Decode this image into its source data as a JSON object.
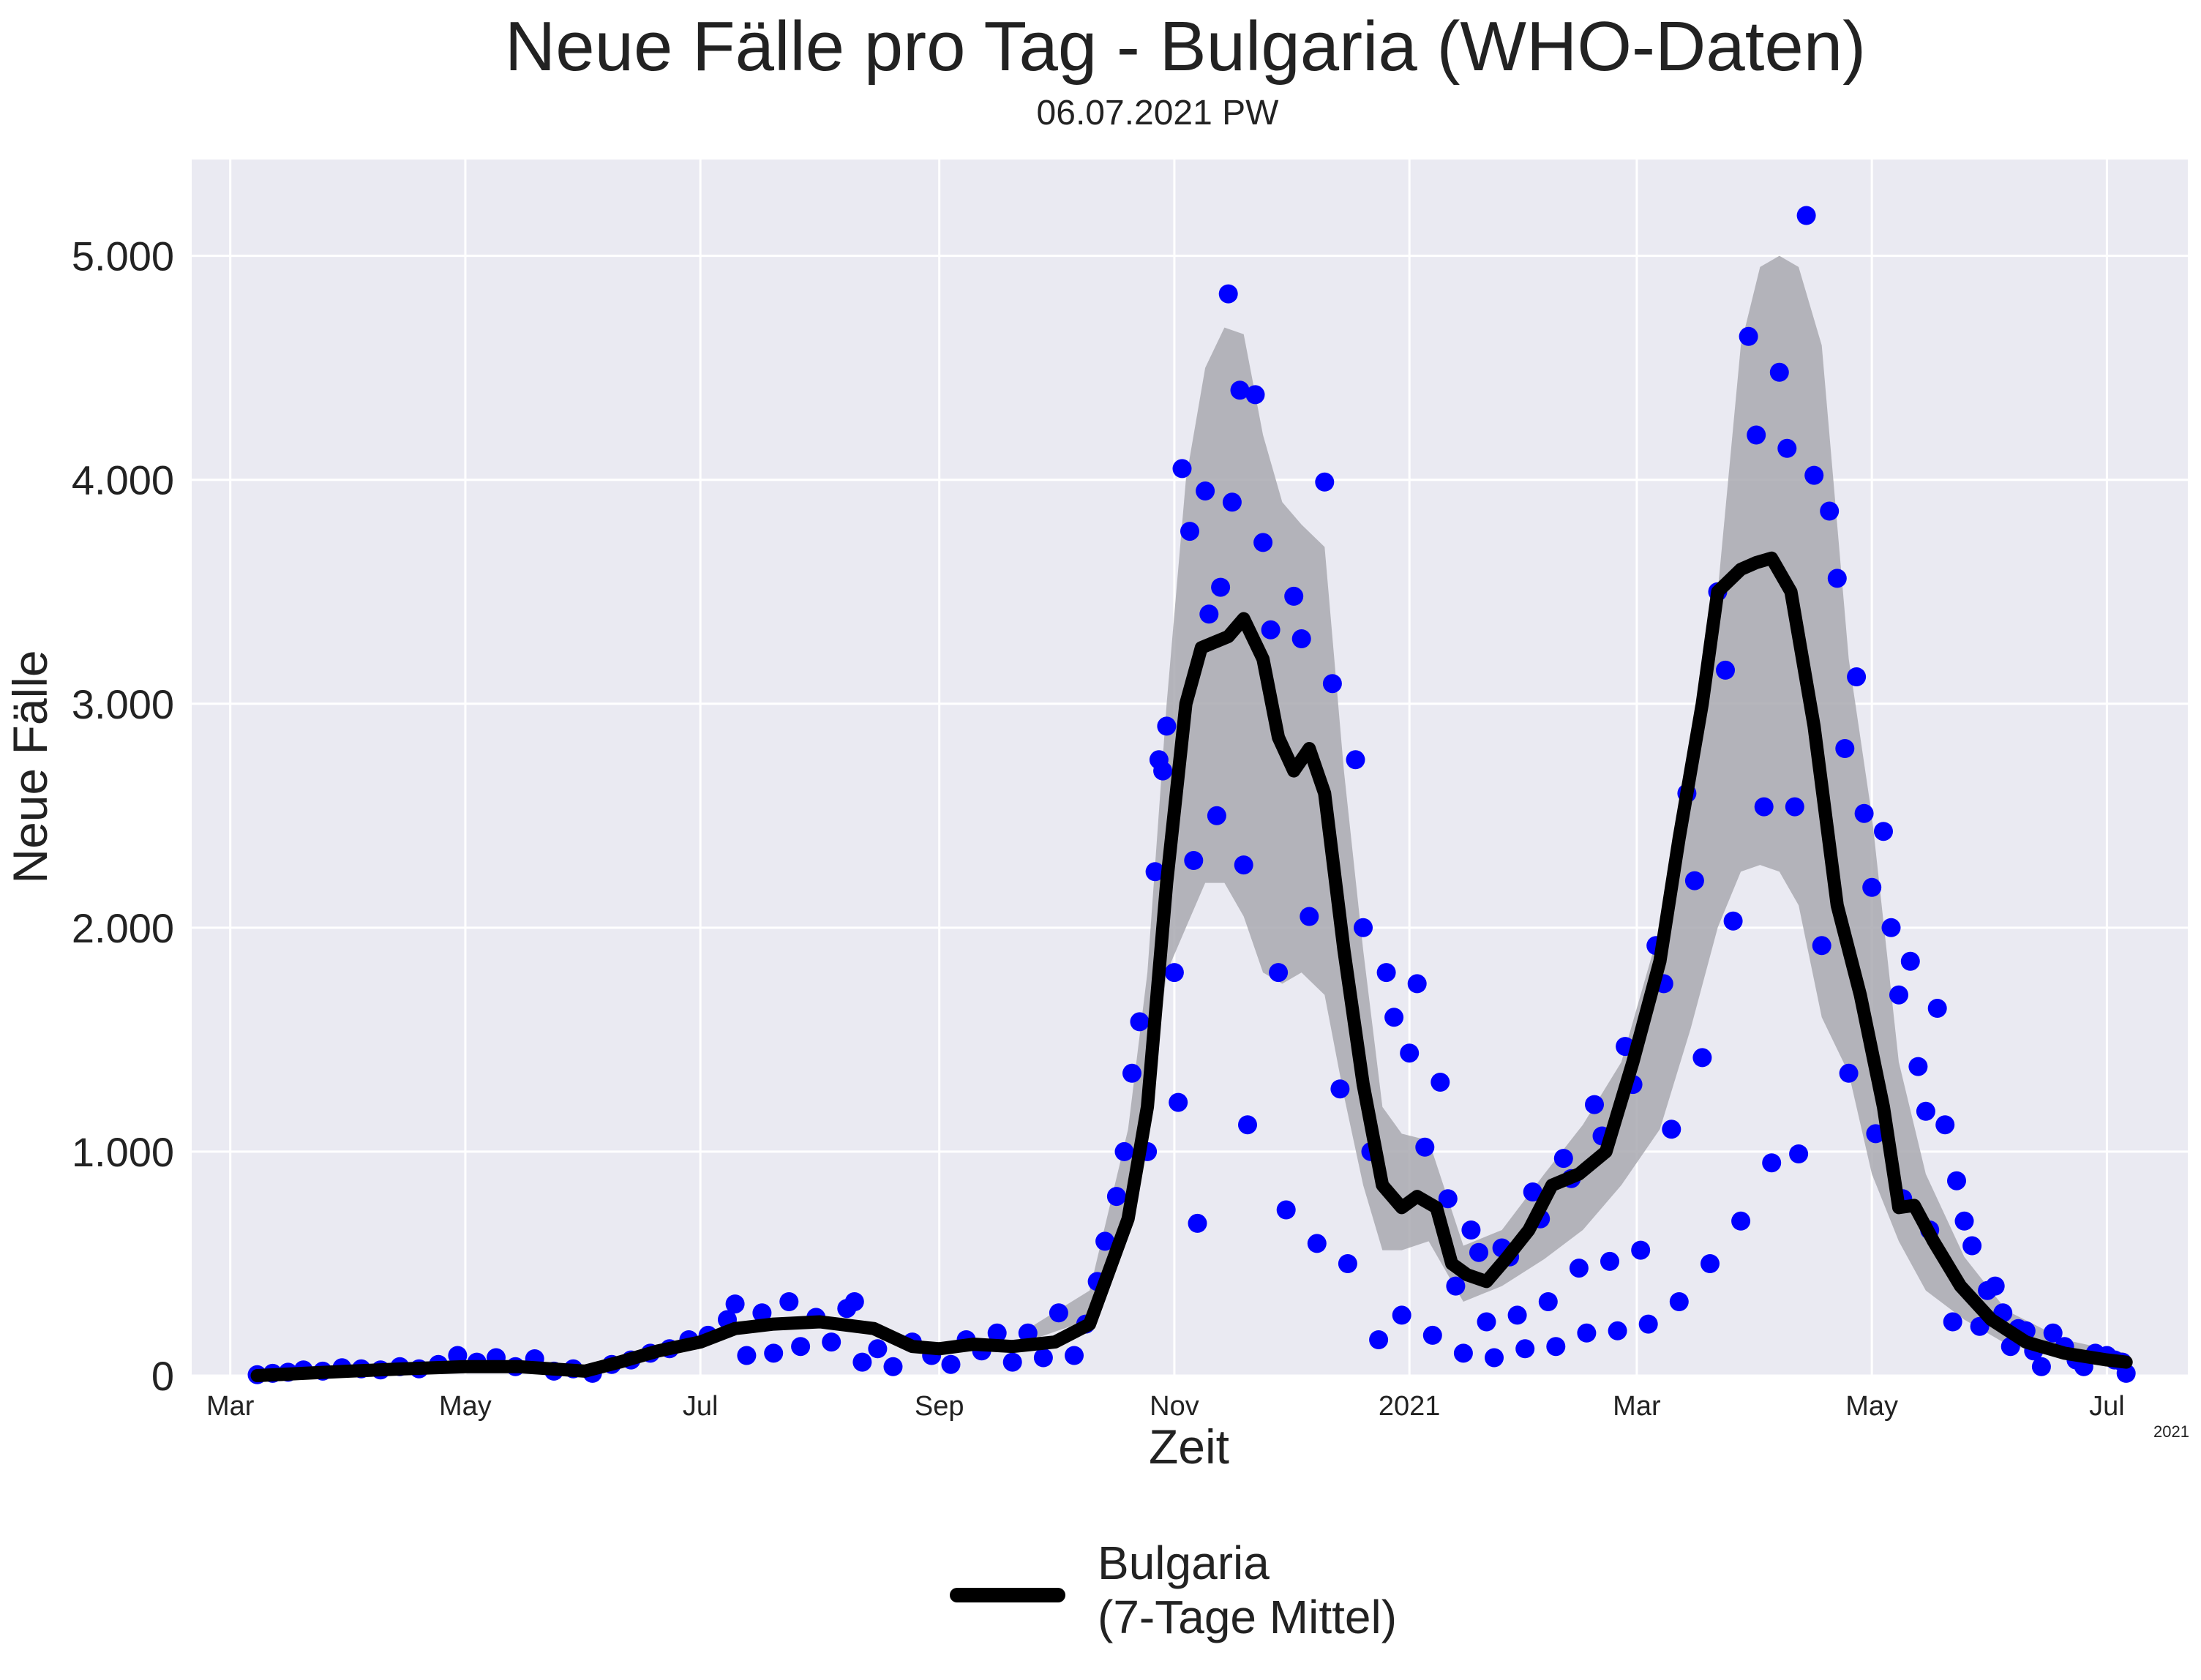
{
  "chart_data": {
    "type": "line",
    "title": "Neue Fälle pro Tag - Bulgaria (WHO-Daten)",
    "subtitle": "06.07.2021 PW",
    "xlabel": "Zeit",
    "ylabel": "Neue Fälle",
    "x_offset_label": "2021",
    "x_range": [
      "2020-02-20",
      "2021-07-22"
    ],
    "ylim": [
      0,
      5430
    ],
    "yticks": [
      {
        "value": 0,
        "label": "0"
      },
      {
        "value": 1000,
        "label": "1.000"
      },
      {
        "value": 2000,
        "label": "2.000"
      },
      {
        "value": 3000,
        "label": "3.000"
      },
      {
        "value": 4000,
        "label": "4.000"
      },
      {
        "value": 5000,
        "label": "5.000"
      }
    ],
    "xticks": [
      {
        "date": "2020-03-01",
        "label": "Mar"
      },
      {
        "date": "2020-05-01",
        "label": "May"
      },
      {
        "date": "2020-07-01",
        "label": "Jul"
      },
      {
        "date": "2020-09-01",
        "label": "Sep"
      },
      {
        "date": "2020-11-01",
        "label": "Nov"
      },
      {
        "date": "2021-01-01",
        "label": "2021"
      },
      {
        "date": "2021-03-01",
        "label": "Mar"
      },
      {
        "date": "2021-05-01",
        "label": "May"
      },
      {
        "date": "2021-07-01",
        "label": "Jul"
      }
    ],
    "grid": true,
    "legend": {
      "position": "bottom-center",
      "label": "Bulgaria\n(7-Tage Mittel)"
    },
    "colors": {
      "points": "#0000ff",
      "line": "#000000",
      "band": "#a9a9b0",
      "background": "#eaeaf2",
      "grid": "#ffffff"
    },
    "series": [
      {
        "type": "line",
        "x": [
          "2020-03-08",
          "2020-03-20",
          "2020-04-01",
          "2020-04-15",
          "2020-05-01",
          "2020-05-15",
          "2020-06-01",
          "2020-06-10",
          "2020-06-20",
          "2020-07-01",
          "2020-07-10",
          "2020-07-20",
          "2020-08-01",
          "2020-08-15",
          "2020-08-25",
          "2020-09-01",
          "2020-09-10",
          "2020-09-20",
          "2020-10-01",
          "2020-10-10",
          "2020-10-20",
          "2020-10-25",
          "2020-10-30",
          "2020-11-04",
          "2020-11-08",
          "2020-11-15",
          "2020-11-19",
          "2020-11-24",
          "2020-11-28",
          "2020-12-02",
          "2020-12-06",
          "2020-12-10",
          "2020-12-15",
          "2020-12-20",
          "2020-12-25",
          "2020-12-30",
          "2021-01-03",
          "2021-01-08",
          "2021-01-12",
          "2021-01-16",
          "2021-01-21",
          "2021-01-26",
          "2021-02-01",
          "2021-02-07",
          "2021-02-14",
          "2021-02-21",
          "2021-02-28",
          "2021-03-07",
          "2021-03-12",
          "2021-03-18",
          "2021-03-22",
          "2021-03-28",
          "2021-04-01",
          "2021-04-05",
          "2021-04-10",
          "2021-04-16",
          "2021-04-22",
          "2021-04-28",
          "2021-05-04",
          "2021-05-08",
          "2021-05-12",
          "2021-05-17",
          "2021-05-24",
          "2021-06-01",
          "2021-06-10",
          "2021-06-20",
          "2021-07-01",
          "2021-07-06"
        ],
        "y": [
          0,
          10,
          20,
          30,
          40,
          40,
          20,
          60,
          110,
          150,
          210,
          230,
          240,
          210,
          130,
          120,
          140,
          130,
          150,
          230,
          700,
          1200,
          2200,
          3000,
          3250,
          3300,
          3380,
          3200,
          2850,
          2700,
          2800,
          2600,
          1900,
          1300,
          850,
          750,
          800,
          750,
          500,
          450,
          420,
          520,
          650,
          850,
          900,
          1000,
          1400,
          1850,
          2400,
          3000,
          3500,
          3600,
          3630,
          3650,
          3500,
          2900,
          2100,
          1700,
          1200,
          750,
          760,
          600,
          400,
          250,
          150,
          100,
          70,
          60
        ]
      },
      {
        "type": "band",
        "x": [
          "2020-09-25",
          "2020-10-10",
          "2020-10-20",
          "2020-10-25",
          "2020-10-30",
          "2020-11-04",
          "2020-11-09",
          "2020-11-14",
          "2020-11-19",
          "2020-11-24",
          "2020-11-29",
          "2020-12-04",
          "2020-12-10",
          "2020-12-15",
          "2020-12-20",
          "2020-12-25",
          "2020-12-30",
          "2021-01-06",
          "2021-01-15",
          "2021-01-25",
          "2021-02-05",
          "2021-02-15",
          "2021-02-25",
          "2021-03-07",
          "2021-03-15",
          "2021-03-22",
          "2021-03-28",
          "2021-04-02",
          "2021-04-07",
          "2021-04-12",
          "2021-04-18",
          "2021-04-25",
          "2021-05-01",
          "2021-05-08",
          "2021-05-15",
          "2021-05-25",
          "2021-06-05",
          "2021-06-20",
          "2021-07-06"
        ],
        "upper": [
          220,
          380,
          1100,
          1800,
          3000,
          4000,
          4500,
          4680,
          4650,
          4200,
          3900,
          3800,
          3700,
          2700,
          1900,
          1200,
          1080,
          1050,
          580,
          650,
          900,
          1120,
          1400,
          2000,
          2700,
          3500,
          4600,
          4950,
          5000,
          4950,
          4600,
          3200,
          2500,
          1400,
          900,
          530,
          290,
          160,
          100
        ],
        "lower": [
          160,
          250,
          650,
          1100,
          1800,
          2000,
          2200,
          2200,
          2050,
          1800,
          1750,
          1800,
          1700,
          1250,
          850,
          560,
          560,
          600,
          330,
          400,
          520,
          650,
          850,
          1100,
          1550,
          2000,
          2250,
          2280,
          2250,
          2100,
          1600,
          1350,
          900,
          600,
          380,
          250,
          140,
          80,
          40
        ]
      },
      {
        "type": "scatter",
        "points": [
          [
            "2020-03-08",
            4
          ],
          [
            "2020-03-12",
            10
          ],
          [
            "2020-03-16",
            15
          ],
          [
            "2020-03-20",
            25
          ],
          [
            "2020-03-25",
            20
          ],
          [
            "2020-03-30",
            35
          ],
          [
            "2020-04-04",
            30
          ],
          [
            "2020-04-09",
            25
          ],
          [
            "2020-04-14",
            40
          ],
          [
            "2020-04-19",
            30
          ],
          [
            "2020-04-24",
            50
          ],
          [
            "2020-04-29",
            90
          ],
          [
            "2020-05-04",
            60
          ],
          [
            "2020-05-09",
            80
          ],
          [
            "2020-05-14",
            40
          ],
          [
            "2020-05-19",
            75
          ],
          [
            "2020-05-24",
            20
          ],
          [
            "2020-05-29",
            30
          ],
          [
            "2020-06-03",
            10
          ],
          [
            "2020-06-08",
            50
          ],
          [
            "2020-06-13",
            70
          ],
          [
            "2020-06-18",
            100
          ],
          [
            "2020-06-23",
            120
          ],
          [
            "2020-06-28",
            160
          ],
          [
            "2020-07-03",
            180
          ],
          [
            "2020-07-08",
            250
          ],
          [
            "2020-07-10",
            320
          ],
          [
            "2020-07-13",
            90
          ],
          [
            "2020-07-17",
            280
          ],
          [
            "2020-07-20",
            100
          ],
          [
            "2020-07-24",
            330
          ],
          [
            "2020-07-27",
            130
          ],
          [
            "2020-07-31",
            260
          ],
          [
            "2020-08-04",
            150
          ],
          [
            "2020-08-08",
            300
          ],
          [
            "2020-08-10",
            330
          ],
          [
            "2020-08-12",
            60
          ],
          [
            "2020-08-16",
            120
          ],
          [
            "2020-08-20",
            40
          ],
          [
            "2020-08-25",
            150
          ],
          [
            "2020-08-30",
            90
          ],
          [
            "2020-09-04",
            50
          ],
          [
            "2020-09-08",
            160
          ],
          [
            "2020-09-12",
            110
          ],
          [
            "2020-09-16",
            190
          ],
          [
            "2020-09-20",
            60
          ],
          [
            "2020-09-24",
            190
          ],
          [
            "2020-09-28",
            80
          ],
          [
            "2020-10-02",
            280
          ],
          [
            "2020-10-06",
            90
          ],
          [
            "2020-10-09",
            230
          ],
          [
            "2020-10-12",
            420
          ],
          [
            "2020-10-14",
            600
          ],
          [
            "2020-10-17",
            800
          ],
          [
            "2020-10-19",
            1000
          ],
          [
            "2020-10-21",
            1350
          ],
          [
            "2020-10-23",
            1580
          ],
          [
            "2020-10-25",
            1000
          ],
          [
            "2020-10-27",
            2250
          ],
          [
            "2020-10-28",
            2750
          ],
          [
            "2020-10-29",
            2700
          ],
          [
            "2020-10-30",
            2900
          ],
          [
            "2020-11-01",
            1800
          ],
          [
            "2020-11-02",
            1220
          ],
          [
            "2020-11-03",
            4050
          ],
          [
            "2020-11-05",
            3770
          ],
          [
            "2020-11-06",
            2300
          ],
          [
            "2020-11-07",
            680
          ],
          [
            "2020-11-09",
            3950
          ],
          [
            "2020-11-10",
            3400
          ],
          [
            "2020-11-12",
            2500
          ],
          [
            "2020-11-13",
            3520
          ],
          [
            "2020-11-15",
            4830
          ],
          [
            "2020-11-16",
            3900
          ],
          [
            "2020-11-18",
            4400
          ],
          [
            "2020-11-19",
            2280
          ],
          [
            "2020-11-20",
            1120
          ],
          [
            "2020-11-22",
            4380
          ],
          [
            "2020-11-24",
            3720
          ],
          [
            "2020-11-26",
            3330
          ],
          [
            "2020-11-28",
            1800
          ],
          [
            "2020-11-30",
            740
          ],
          [
            "2020-12-02",
            3480
          ],
          [
            "2020-12-04",
            3290
          ],
          [
            "2020-12-06",
            2050
          ],
          [
            "2020-12-08",
            590
          ],
          [
            "2020-12-10",
            3990
          ],
          [
            "2020-12-12",
            3090
          ],
          [
            "2020-12-14",
            1280
          ],
          [
            "2020-12-16",
            500
          ],
          [
            "2020-12-18",
            2750
          ],
          [
            "2020-12-20",
            2000
          ],
          [
            "2020-12-22",
            1000
          ],
          [
            "2020-12-24",
            160
          ],
          [
            "2020-12-26",
            1800
          ],
          [
            "2020-12-28",
            1600
          ],
          [
            "2020-12-30",
            270
          ],
          [
            "2021-01-01",
            1440
          ],
          [
            "2021-01-03",
            1750
          ],
          [
            "2021-01-05",
            1020
          ],
          [
            "2021-01-07",
            180
          ],
          [
            "2021-01-09",
            1310
          ],
          [
            "2021-01-11",
            790
          ],
          [
            "2021-01-13",
            400
          ],
          [
            "2021-01-15",
            100
          ],
          [
            "2021-01-17",
            650
          ],
          [
            "2021-01-19",
            550
          ],
          [
            "2021-01-21",
            240
          ],
          [
            "2021-01-23",
            80
          ],
          [
            "2021-01-25",
            570
          ],
          [
            "2021-01-27",
            530
          ],
          [
            "2021-01-29",
            270
          ],
          [
            "2021-01-31",
            120
          ],
          [
            "2021-02-02",
            820
          ],
          [
            "2021-02-04",
            700
          ],
          [
            "2021-02-06",
            330
          ],
          [
            "2021-02-08",
            130
          ],
          [
            "2021-02-10",
            970
          ],
          [
            "2021-02-12",
            880
          ],
          [
            "2021-02-14",
            480
          ],
          [
            "2021-02-16",
            190
          ],
          [
            "2021-02-18",
            1210
          ],
          [
            "2021-02-20",
            1070
          ],
          [
            "2021-02-22",
            510
          ],
          [
            "2021-02-24",
            200
          ],
          [
            "2021-02-26",
            1470
          ],
          [
            "2021-02-28",
            1300
          ],
          [
            "2021-03-02",
            560
          ],
          [
            "2021-03-04",
            230
          ],
          [
            "2021-03-06",
            1920
          ],
          [
            "2021-03-08",
            1750
          ],
          [
            "2021-03-10",
            1100
          ],
          [
            "2021-03-12",
            330
          ],
          [
            "2021-03-14",
            2600
          ],
          [
            "2021-03-16",
            2210
          ],
          [
            "2021-03-18",
            1420
          ],
          [
            "2021-03-20",
            500
          ],
          [
            "2021-03-22",
            3500
          ],
          [
            "2021-03-24",
            3150
          ],
          [
            "2021-03-26",
            2030
          ],
          [
            "2021-03-28",
            690
          ],
          [
            "2021-03-30",
            4640
          ],
          [
            "2021-04-01",
            4200
          ],
          [
            "2021-04-03",
            2540
          ],
          [
            "2021-04-05",
            950
          ],
          [
            "2021-04-07",
            4480
          ],
          [
            "2021-04-09",
            4140
          ],
          [
            "2021-04-11",
            2540
          ],
          [
            "2021-04-12",
            990
          ],
          [
            "2021-04-14",
            5180
          ],
          [
            "2021-04-16",
            4020
          ],
          [
            "2021-04-18",
            1920
          ],
          [
            "2021-04-20",
            3860
          ],
          [
            "2021-04-22",
            3560
          ],
          [
            "2021-04-24",
            2800
          ],
          [
            "2021-04-25",
            1350
          ],
          [
            "2021-04-27",
            3120
          ],
          [
            "2021-04-29",
            2510
          ],
          [
            "2021-05-01",
            2180
          ],
          [
            "2021-05-02",
            1080
          ],
          [
            "2021-05-04",
            2430
          ],
          [
            "2021-05-06",
            2000
          ],
          [
            "2021-05-08",
            1700
          ],
          [
            "2021-05-09",
            790
          ],
          [
            "2021-05-11",
            1850
          ],
          [
            "2021-05-13",
            1380
          ],
          [
            "2021-05-15",
            1180
          ],
          [
            "2021-05-16",
            650
          ],
          [
            "2021-05-18",
            1640
          ],
          [
            "2021-05-20",
            1120
          ],
          [
            "2021-05-22",
            240
          ],
          [
            "2021-05-23",
            870
          ],
          [
            "2021-05-25",
            690
          ],
          [
            "2021-05-27",
            580
          ],
          [
            "2021-05-29",
            220
          ],
          [
            "2021-05-31",
            380
          ],
          [
            "2021-06-02",
            400
          ],
          [
            "2021-06-04",
            280
          ],
          [
            "2021-06-06",
            130
          ],
          [
            "2021-06-08",
            210
          ],
          [
            "2021-06-10",
            200
          ],
          [
            "2021-06-12",
            110
          ],
          [
            "2021-06-14",
            40
          ],
          [
            "2021-06-17",
            190
          ],
          [
            "2021-06-20",
            130
          ],
          [
            "2021-06-23",
            70
          ],
          [
            "2021-06-25",
            40
          ],
          [
            "2021-06-28",
            100
          ],
          [
            "2021-07-01",
            90
          ],
          [
            "2021-07-03",
            70
          ],
          [
            "2021-07-05",
            60
          ],
          [
            "2021-07-06",
            10
          ]
        ]
      }
    ]
  }
}
